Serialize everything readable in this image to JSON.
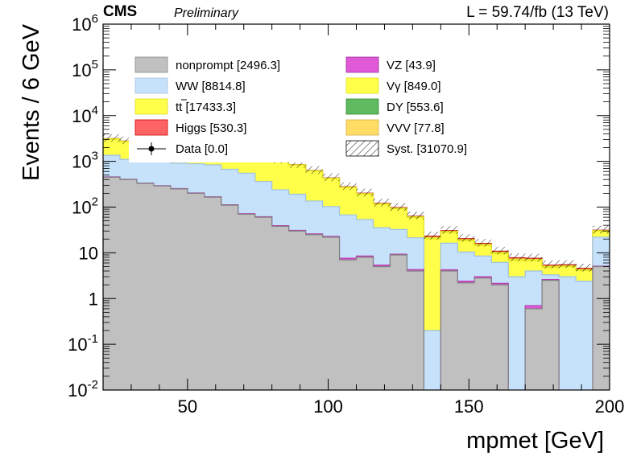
{
  "header": {
    "experiment": "CMS",
    "status": "Preliminary",
    "lumi": "L = 59.74/fb (13 TeV)"
  },
  "chart_data": {
    "type": "area",
    "stacked": true,
    "xlabel": "mpmet [GeV]",
    "ylabel": "Events / 6 GeV",
    "xlim": [
      20,
      200
    ],
    "ylim": [
      0.01,
      1000000
    ],
    "yscale": "log",
    "x_ticks": [
      50,
      100,
      150,
      200
    ],
    "y_ticks": [
      "10^-2",
      "10^-1",
      "1",
      "10",
      "10^2",
      "10^3",
      "10^4",
      "10^5",
      "10^6"
    ],
    "bin_width": 6,
    "bin_edges": [
      20,
      26,
      32,
      38,
      44,
      50,
      56,
      62,
      68,
      74,
      80,
      86,
      92,
      98,
      104,
      110,
      116,
      122,
      128,
      134,
      140,
      146,
      152,
      158,
      164,
      170,
      176,
      182,
      188,
      194,
      200
    ],
    "series": [
      {
        "name": "nonprompt",
        "legend": "nonprompt [2496.3]",
        "color": "#c0c0c0",
        "values": [
          450,
          400,
          330,
          290,
          250,
          200,
          165,
          110,
          70,
          60,
          38,
          30,
          25,
          22,
          7,
          8,
          5,
          9,
          4,
          0,
          4,
          2.2,
          2.8,
          2,
          0,
          0.6,
          2.5,
          0,
          0,
          5
        ]
      },
      {
        "name": "VZ",
        "legend": "VZ [43.9]",
        "color": "#e05ad8",
        "values": [
          6,
          5,
          4.5,
          4,
          3.5,
          3,
          2.7,
          2.2,
          1.8,
          1.5,
          1.2,
          1,
          0.9,
          0.8,
          0.6,
          0.5,
          0.4,
          0.35,
          0.3,
          0,
          0.25,
          0.2,
          0.2,
          0.15,
          0,
          0.1,
          0.1,
          0,
          0,
          0.1
        ]
      },
      {
        "name": "WW",
        "legend": "WW [8814.8]",
        "color": "#c6e2fa",
        "values": [
          900,
          700,
          640,
          700,
          660,
          680,
          670,
          560,
          480,
          300,
          200,
          160,
          110,
          80,
          60,
          45,
          30,
          23,
          17,
          0.2,
          12,
          8,
          5.5,
          4,
          3,
          3.3,
          0.7,
          3,
          2.4,
          17
        ]
      },
      {
        "name": "tt",
        "legend": "tt [17433.3]",
        "color": "#ffff4a",
        "values": [
          1700,
          1600,
          1520,
          1500,
          1410,
          1400,
          1360,
          1320,
          1240,
          1040,
          800,
          640,
          480,
          320,
          200,
          140,
          80,
          60,
          38,
          20,
          12,
          8,
          6,
          3.5,
          3.8,
          2.8,
          1.5,
          2,
          1.7,
          8
        ]
      },
      {
        "name": "Vγ",
        "legend": "Vγ [849.0]",
        "color": "#ffff4a",
        "values": [
          60,
          55,
          50,
          45,
          40,
          35,
          30,
          25,
          20,
          15,
          12,
          10,
          8,
          6,
          5,
          4,
          3,
          2.5,
          2,
          1.5,
          1.2,
          1,
          0.8,
          0.6,
          0.5,
          0.4,
          0.3,
          0.2,
          0.2,
          0.5
        ]
      },
      {
        "name": "Higgs",
        "legend": "Higgs [530.3]",
        "color": "#ff6464",
        "values": [
          30,
          28,
          26,
          24,
          22,
          20,
          18,
          16,
          14,
          12,
          10,
          8,
          7,
          6,
          5,
          4,
          3,
          2.5,
          2,
          1.5,
          1.2,
          1,
          0.8,
          0.6,
          0.5,
          0.4,
          0.3,
          0.3,
          0.3,
          0.6
        ]
      },
      {
        "name": "DY",
        "legend": "DY [553.6]",
        "color": "#5fba60",
        "values": []
      },
      {
        "name": "VVV",
        "legend": "VVV [77.8]",
        "color": "#ffdc64",
        "values": []
      }
    ],
    "data_series": {
      "name": "Data",
      "legend": "Data [0.0]",
      "values": []
    },
    "syst": {
      "legend": "Syst. [31070.9]"
    },
    "legend_placement": "top"
  }
}
